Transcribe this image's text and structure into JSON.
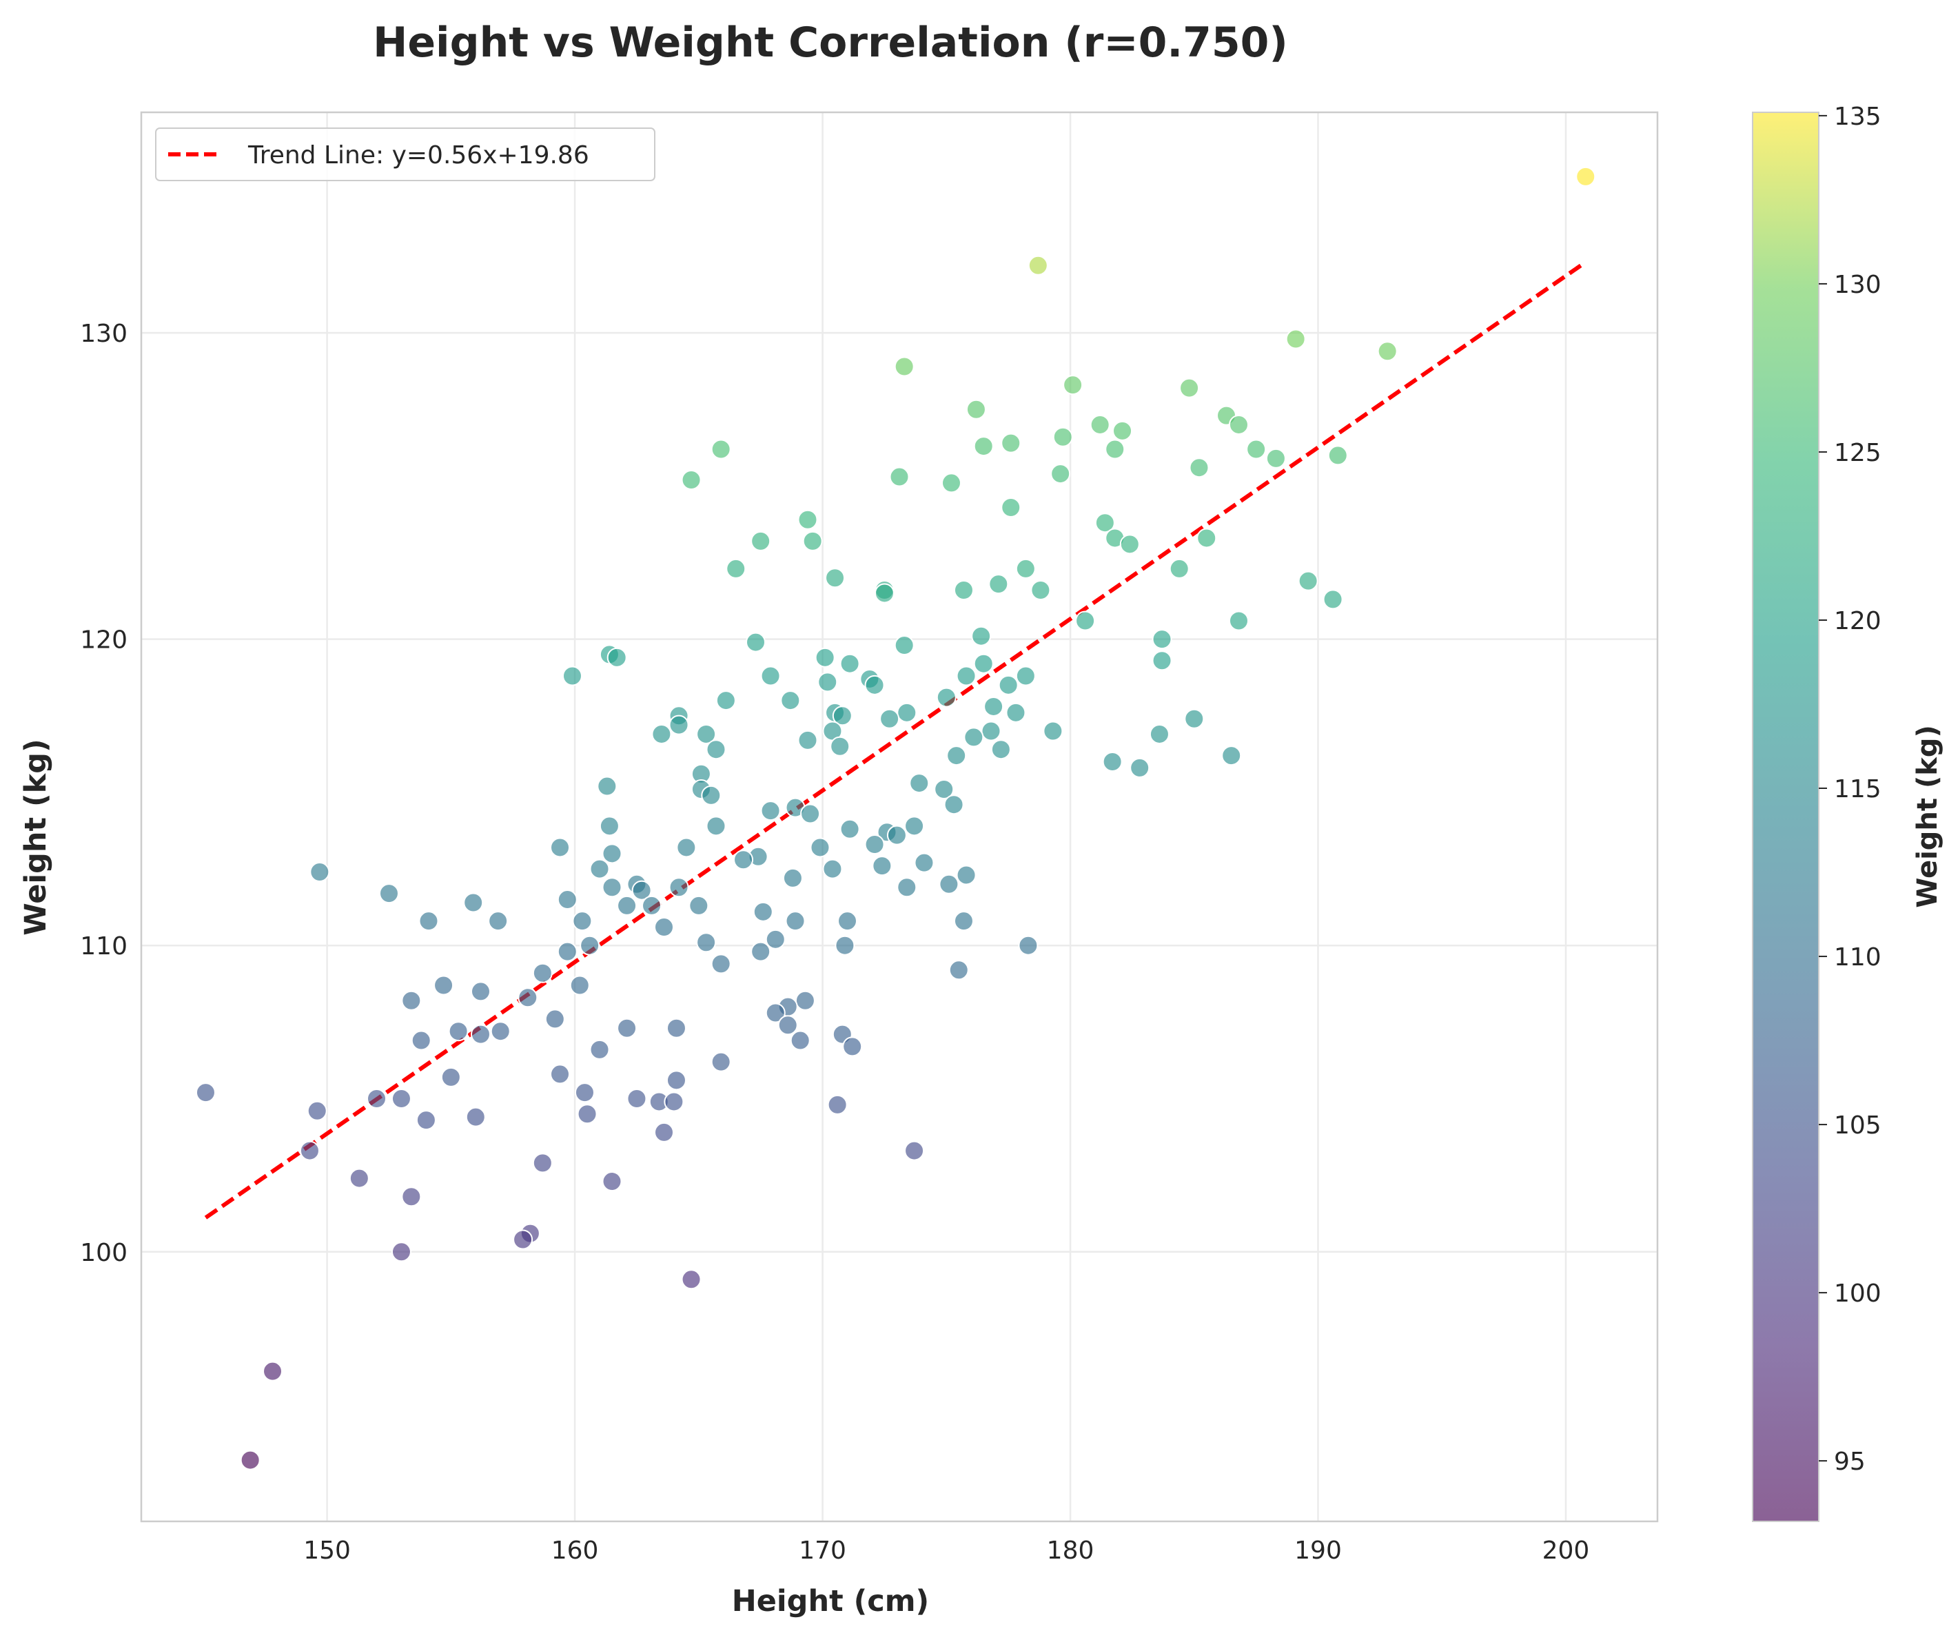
{
  "chart_data": {
    "type": "scatter",
    "title": "Height vs Weight Correlation (r=0.750)",
    "xlabel": "Height (cm)",
    "ylabel": "Weight (kg)",
    "xlim": [
      142.5,
      203.7
    ],
    "ylim": [
      91.2,
      137.2
    ],
    "xticks": [
      150,
      160,
      170,
      180,
      190,
      200
    ],
    "yticks": [
      100,
      110,
      120,
      130
    ],
    "grid": true,
    "legend_position": "top-left",
    "colormap": "viridis",
    "colorbar": {
      "label": "Weight (kg)",
      "range": [
        93.2,
        135.1
      ],
      "ticks": [
        95,
        100,
        105,
        110,
        115,
        120,
        125,
        130,
        135
      ]
    },
    "trend_line": {
      "label": "Trend Line: y=0.56x+19.86",
      "slope": 0.56,
      "intercept": 19.86,
      "x_range": [
        145.1,
        200.8
      ],
      "color": "#ff0000",
      "style": "dashed"
    },
    "series": [
      {
        "points": [
          [
            200.8,
            135.1
          ],
          [
            178.7,
            132.2
          ],
          [
            189.1,
            129.8
          ],
          [
            192.8,
            129.4
          ],
          [
            173.3,
            128.9
          ],
          [
            180.1,
            128.3
          ],
          [
            184.8,
            128.2
          ],
          [
            176.2,
            127.5
          ],
          [
            186.3,
            127.3
          ],
          [
            181.2,
            127.0
          ],
          [
            186.8,
            127.0
          ],
          [
            182.1,
            126.8
          ],
          [
            179.7,
            126.6
          ],
          [
            177.6,
            126.4
          ],
          [
            176.5,
            126.3
          ],
          [
            165.9,
            126.2
          ],
          [
            181.8,
            126.2
          ],
          [
            187.5,
            126.2
          ],
          [
            190.8,
            126.0
          ],
          [
            188.3,
            125.9
          ],
          [
            185.2,
            125.6
          ],
          [
            179.6,
            125.4
          ],
          [
            173.1,
            125.3
          ],
          [
            164.7,
            125.2
          ],
          [
            175.2,
            125.1
          ],
          [
            177.6,
            124.3
          ],
          [
            169.4,
            123.9
          ],
          [
            181.4,
            123.8
          ],
          [
            181.8,
            123.3
          ],
          [
            185.5,
            123.3
          ],
          [
            167.5,
            123.2
          ],
          [
            169.6,
            123.2
          ],
          [
            182.4,
            123.1
          ],
          [
            166.5,
            122.3
          ],
          [
            178.2,
            122.3
          ],
          [
            184.4,
            122.3
          ],
          [
            170.5,
            122.0
          ],
          [
            189.6,
            121.9
          ],
          [
            177.1,
            121.8
          ],
          [
            172.5,
            121.6
          ],
          [
            175.7,
            121.6
          ],
          [
            178.8,
            121.6
          ],
          [
            172.5,
            121.5
          ],
          [
            190.6,
            121.3
          ],
          [
            180.6,
            120.6
          ],
          [
            186.8,
            120.6
          ],
          [
            176.4,
            120.1
          ],
          [
            183.7,
            120.0
          ],
          [
            167.3,
            119.9
          ],
          [
            173.3,
            119.8
          ],
          [
            161.4,
            119.5
          ],
          [
            161.7,
            119.4
          ],
          [
            170.1,
            119.4
          ],
          [
            183.7,
            119.3
          ],
          [
            171.1,
            119.2
          ],
          [
            176.5,
            119.2
          ],
          [
            159.9,
            118.8
          ],
          [
            167.9,
            118.8
          ],
          [
            175.8,
            118.8
          ],
          [
            178.2,
            118.8
          ],
          [
            171.9,
            118.7
          ],
          [
            170.2,
            118.6
          ],
          [
            172.1,
            118.5
          ],
          [
            177.5,
            118.5
          ],
          [
            175.0,
            118.1
          ],
          [
            166.1,
            118.0
          ],
          [
            168.7,
            118.0
          ],
          [
            176.9,
            117.8
          ],
          [
            170.5,
            117.6
          ],
          [
            173.4,
            117.6
          ],
          [
            177.8,
            117.6
          ],
          [
            164.2,
            117.5
          ],
          [
            170.8,
            117.5
          ],
          [
            172.7,
            117.4
          ],
          [
            185.0,
            117.4
          ],
          [
            164.2,
            117.2
          ],
          [
            170.4,
            117.0
          ],
          [
            176.8,
            117.0
          ],
          [
            179.3,
            117.0
          ],
          [
            163.5,
            116.9
          ],
          [
            165.3,
            116.9
          ],
          [
            183.6,
            116.9
          ],
          [
            176.1,
            116.8
          ],
          [
            169.4,
            116.7
          ],
          [
            170.7,
            116.5
          ],
          [
            165.7,
            116.4
          ],
          [
            177.2,
            116.4
          ],
          [
            175.4,
            116.2
          ],
          [
            186.5,
            116.2
          ],
          [
            181.7,
            116.0
          ],
          [
            182.8,
            115.8
          ],
          [
            165.1,
            115.6
          ],
          [
            173.9,
            115.3
          ],
          [
            161.3,
            115.2
          ],
          [
            165.1,
            115.1
          ],
          [
            174.9,
            115.1
          ],
          [
            165.5,
            114.9
          ],
          [
            175.3,
            114.6
          ],
          [
            168.9,
            114.5
          ],
          [
            167.9,
            114.4
          ],
          [
            169.5,
            114.3
          ],
          [
            161.4,
            113.9
          ],
          [
            165.7,
            113.9
          ],
          [
            173.7,
            113.9
          ],
          [
            171.1,
            113.8
          ],
          [
            172.6,
            113.7
          ],
          [
            173.0,
            113.6
          ],
          [
            172.1,
            113.3
          ],
          [
            159.4,
            113.2
          ],
          [
            164.5,
            113.2
          ],
          [
            169.9,
            113.2
          ],
          [
            161.5,
            113.0
          ],
          [
            167.4,
            112.9
          ],
          [
            166.8,
            112.8
          ],
          [
            174.1,
            112.7
          ],
          [
            172.4,
            112.6
          ],
          [
            161.0,
            112.5
          ],
          [
            170.4,
            112.5
          ],
          [
            149.7,
            112.4
          ],
          [
            175.8,
            112.3
          ],
          [
            168.8,
            112.2
          ],
          [
            162.5,
            112.0
          ],
          [
            175.1,
            112.0
          ],
          [
            161.5,
            111.9
          ],
          [
            164.2,
            111.9
          ],
          [
            173.4,
            111.9
          ],
          [
            162.7,
            111.8
          ],
          [
            152.5,
            111.7
          ],
          [
            159.7,
            111.5
          ],
          [
            155.9,
            111.4
          ],
          [
            162.1,
            111.3
          ],
          [
            163.1,
            111.3
          ],
          [
            165.0,
            111.3
          ],
          [
            167.6,
            111.1
          ],
          [
            154.1,
            110.8
          ],
          [
            156.9,
            110.8
          ],
          [
            160.3,
            110.8
          ],
          [
            168.9,
            110.8
          ],
          [
            171.0,
            110.8
          ],
          [
            175.7,
            110.8
          ],
          [
            163.6,
            110.6
          ],
          [
            168.1,
            110.2
          ],
          [
            165.3,
            110.1
          ],
          [
            160.6,
            110.0
          ],
          [
            170.9,
            110.0
          ],
          [
            178.3,
            110.0
          ],
          [
            159.7,
            109.8
          ],
          [
            167.5,
            109.8
          ],
          [
            165.9,
            109.4
          ],
          [
            175.5,
            109.2
          ],
          [
            158.7,
            109.1
          ],
          [
            154.7,
            108.7
          ],
          [
            160.2,
            108.7
          ],
          [
            156.2,
            108.5
          ],
          [
            158.1,
            108.3
          ],
          [
            153.4,
            108.2
          ],
          [
            169.3,
            108.2
          ],
          [
            168.6,
            108.0
          ],
          [
            168.1,
            107.8
          ],
          [
            159.2,
            107.6
          ],
          [
            168.6,
            107.4
          ],
          [
            162.1,
            107.3
          ],
          [
            164.1,
            107.3
          ],
          [
            155.3,
            107.2
          ],
          [
            157.0,
            107.2
          ],
          [
            156.2,
            107.1
          ],
          [
            170.8,
            107.1
          ],
          [
            153.8,
            106.9
          ],
          [
            169.1,
            106.9
          ],
          [
            171.2,
            106.7
          ],
          [
            161.0,
            106.6
          ],
          [
            165.9,
            106.2
          ],
          [
            155.0,
            105.7
          ],
          [
            164.1,
            105.6
          ],
          [
            159.4,
            105.8
          ],
          [
            145.1,
            105.2
          ],
          [
            160.4,
            105.2
          ],
          [
            152.0,
            105.0
          ],
          [
            153.0,
            105.0
          ],
          [
            162.5,
            105.0
          ],
          [
            163.4,
            104.9
          ],
          [
            164.0,
            104.9
          ],
          [
            170.6,
            104.8
          ],
          [
            149.6,
            104.6
          ],
          [
            160.5,
            104.5
          ],
          [
            156.0,
            104.4
          ],
          [
            154.0,
            104.3
          ],
          [
            163.6,
            103.9
          ],
          [
            149.3,
            103.3
          ],
          [
            173.7,
            103.3
          ],
          [
            158.7,
            102.9
          ],
          [
            151.3,
            102.4
          ],
          [
            161.5,
            102.3
          ],
          [
            153.4,
            101.8
          ],
          [
            158.2,
            100.6
          ],
          [
            157.9,
            100.4
          ],
          [
            153.0,
            100.0
          ],
          [
            164.7,
            99.1
          ],
          [
            147.8,
            96.1
          ],
          [
            146.9,
            93.2
          ]
        ]
      }
    ]
  }
}
